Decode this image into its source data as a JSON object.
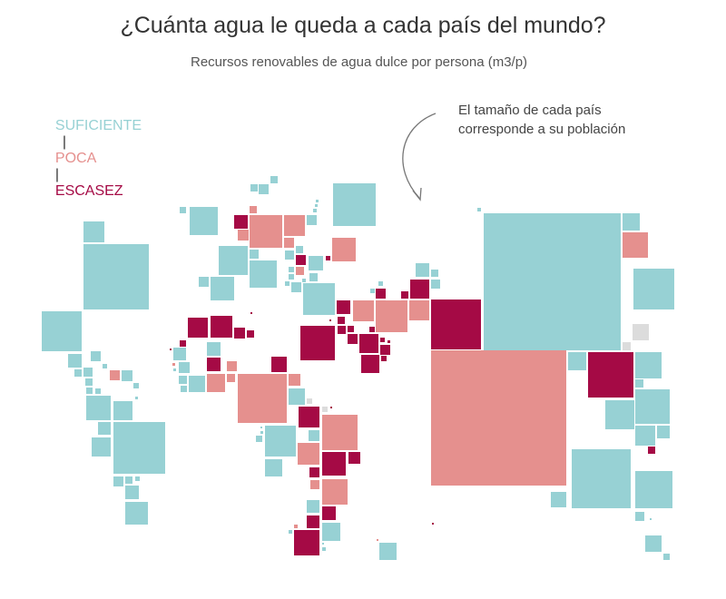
{
  "title": "¿Cuánta agua le queda a cada país del mundo?",
  "subtitle": "Recursos renovables de agua dulce por persona (m3/p)",
  "legend": {
    "items": [
      {
        "key": "t",
        "label": "SUFICIENTE",
        "color": "#97d1d4"
      },
      {
        "key": "p",
        "label": "POCA",
        "color": "#e5908e"
      },
      {
        "key": "c",
        "label": "ESCASEZ",
        "color": "#a50a45"
      }
    ],
    "separator": "|"
  },
  "no_data_color": "#dcdcdc",
  "annotation": {
    "line1": "El tamaño de cada país",
    "line2": "corresponde a su población"
  },
  "cells": [
    "t",
    "t",
    "t",
    "t",
    "t",
    "t",
    "p",
    "c",
    "p",
    "p",
    "t",
    "t",
    "t",
    "t",
    "p",
    "p",
    "p",
    "t",
    "t",
    "t",
    "t",
    "c",
    "c",
    "t",
    "t",
    "t",
    "p",
    "t",
    "t",
    "t",
    "t",
    "t",
    "t",
    "t",
    "t",
    "t",
    "t",
    "t",
    "c",
    "c",
    "t",
    "t",
    "c",
    "c",
    "p",
    "p",
    "p",
    "c",
    "p",
    "c",
    "c",
    "c",
    "c",
    "c",
    "c",
    "c",
    "c",
    "c",
    "c",
    "c",
    "c",
    "c",
    "c",
    "c",
    "c",
    "c",
    "c",
    "c",
    "c",
    "t",
    "t",
    "c",
    "p",
    "t",
    "t",
    "p",
    "c",
    "t",
    "t",
    "t",
    "p",
    "p",
    "p",
    "p",
    "t",
    "g",
    "c",
    "g",
    "c",
    "p",
    "t",
    "t",
    "t",
    "t",
    "t",
    "p",
    "c",
    "c",
    "t",
    "c",
    "p",
    "p",
    "t",
    "c",
    "c",
    "p",
    "t",
    "c",
    "t",
    "t",
    "t",
    "p",
    "t",
    "c",
    "t",
    "t",
    "t",
    "t",
    "t",
    "t",
    "t",
    "t",
    "p",
    "t",
    "t",
    "t",
    "t",
    "t",
    "t",
    "t",
    "t",
    "t",
    "t",
    "t",
    "t",
    "t",
    "t",
    "t",
    "t",
    "t",
    "t",
    "p",
    "t",
    "g",
    "g",
    "t",
    "c",
    "t",
    "t",
    "t",
    "t",
    "t",
    "t",
    "c",
    "t",
    "t",
    "t",
    "t",
    "t",
    "t",
    "t",
    "t"
  ]
}
